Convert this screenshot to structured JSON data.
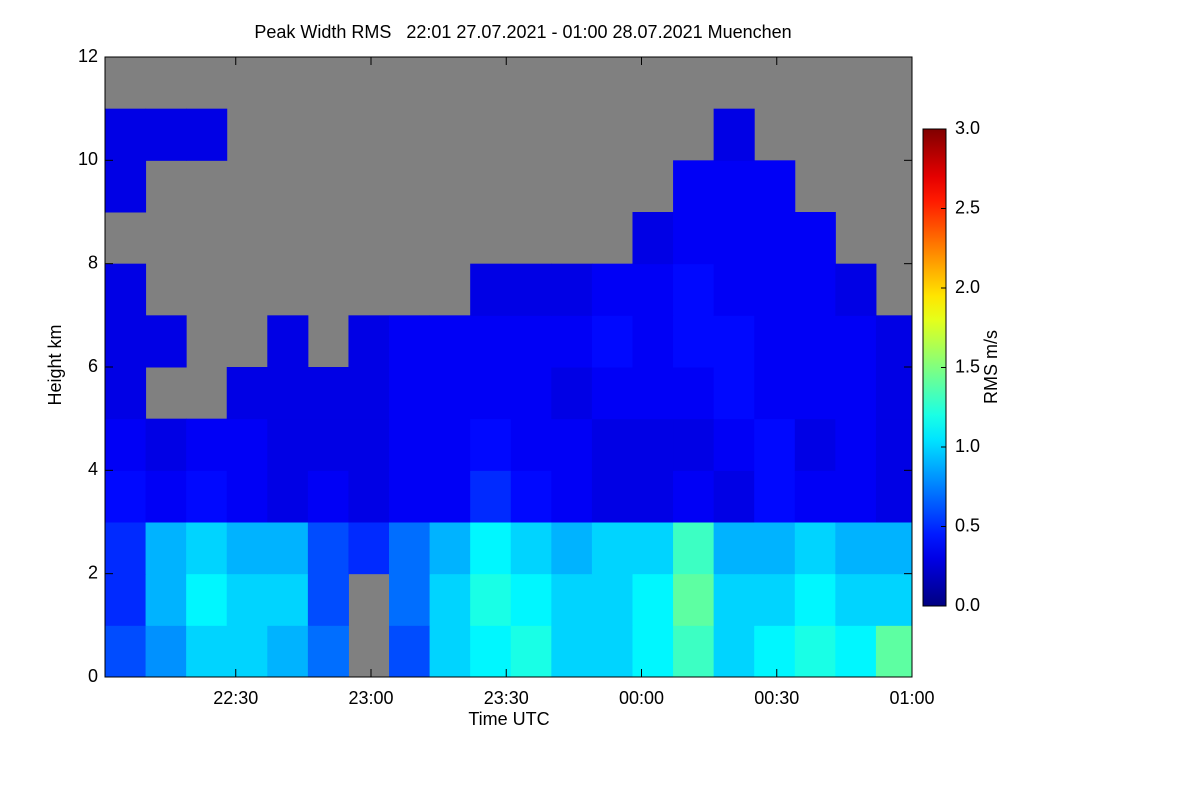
{
  "chart_data": {
    "type": "heatmap",
    "title": "Peak Width RMS   22:01 27.07.2021 - 01:00 28.07.2021 Muenchen",
    "xlabel": "Time UTC",
    "ylabel": "Height km",
    "colorbar_label": "RMS m/s",
    "colormap": "jet",
    "missing_color": "#808080",
    "xlim": [
      1,
      180
    ],
    "xticks": [
      {
        "value": 30,
        "label": "22:30"
      },
      {
        "value": 60,
        "label": "23:00"
      },
      {
        "value": 90,
        "label": "23:30"
      },
      {
        "value": 120,
        "label": "00:00"
      },
      {
        "value": 150,
        "label": "00:30"
      },
      {
        "value": 180,
        "label": "01:00"
      }
    ],
    "ylim": [
      0,
      12
    ],
    "yticks": [
      0,
      2,
      4,
      6,
      8,
      10,
      12
    ],
    "zlim": [
      0,
      3
    ],
    "zticks": [
      {
        "value": 0,
        "label": "0.0"
      },
      {
        "value": 0.5,
        "label": "0.5"
      },
      {
        "value": 1,
        "label": "1.0"
      },
      {
        "value": 1.5,
        "label": "1.5"
      },
      {
        "value": 2,
        "label": "2.0"
      },
      {
        "value": 2.5,
        "label": "2.5"
      },
      {
        "value": 3,
        "label": "3.0"
      }
    ],
    "xedges": [
      1,
      10,
      19,
      28,
      37,
      46,
      55,
      64,
      73,
      82,
      91,
      100,
      109,
      118,
      127,
      136,
      145,
      154,
      163,
      172,
      180
    ],
    "yedges": [
      0,
      1,
      2,
      3,
      4,
      5,
      6,
      7,
      8,
      9,
      10,
      11,
      12
    ],
    "z": [
      [
        0.6,
        0.8,
        1.0,
        1.0,
        0.9,
        0.7,
        null,
        0.6,
        1.0,
        1.1,
        1.2,
        1.0,
        1.0,
        1.1,
        1.3,
        1.0,
        1.1,
        1.2,
        1.1,
        1.4
      ],
      [
        0.5,
        0.9,
        1.1,
        1.0,
        1.0,
        0.6,
        null,
        0.7,
        1.0,
        1.2,
        1.1,
        1.0,
        1.0,
        1.1,
        1.4,
        1.0,
        1.0,
        1.1,
        1.0,
        1.0
      ],
      [
        0.5,
        0.9,
        1.0,
        0.9,
        0.9,
        0.6,
        0.5,
        0.7,
        0.9,
        1.1,
        1.0,
        0.9,
        1.0,
        1.0,
        1.3,
        0.9,
        0.9,
        1.0,
        0.9,
        0.9
      ],
      [
        0.4,
        0.35,
        0.4,
        0.35,
        0.3,
        0.35,
        0.3,
        0.35,
        0.35,
        0.5,
        0.4,
        0.35,
        0.3,
        0.3,
        0.35,
        0.3,
        0.4,
        0.35,
        0.35,
        0.3
      ],
      [
        0.35,
        0.3,
        0.35,
        0.35,
        0.3,
        0.3,
        0.3,
        0.35,
        0.35,
        0.4,
        0.35,
        0.35,
        0.3,
        0.3,
        0.3,
        0.35,
        0.4,
        0.3,
        0.35,
        0.3
      ],
      [
        0.3,
        null,
        null,
        0.3,
        0.3,
        0.3,
        0.3,
        0.35,
        0.35,
        0.35,
        0.35,
        0.3,
        0.35,
        0.35,
        0.35,
        0.4,
        0.35,
        0.35,
        0.35,
        0.3
      ],
      [
        0.3,
        0.3,
        null,
        null,
        0.3,
        null,
        0.3,
        0.35,
        0.35,
        0.35,
        0.35,
        0.35,
        0.4,
        0.35,
        0.4,
        0.4,
        0.35,
        0.35,
        0.35,
        0.3
      ],
      [
        0.3,
        null,
        null,
        null,
        null,
        null,
        null,
        null,
        null,
        0.3,
        0.3,
        0.3,
        0.35,
        0.35,
        0.4,
        0.35,
        0.35,
        0.35,
        0.3,
        null
      ],
      [
        null,
        null,
        null,
        null,
        null,
        null,
        null,
        null,
        null,
        null,
        null,
        null,
        null,
        0.3,
        0.35,
        0.35,
        0.35,
        0.35,
        null,
        null
      ],
      [
        0.3,
        null,
        null,
        null,
        null,
        null,
        null,
        null,
        null,
        null,
        null,
        null,
        null,
        null,
        0.35,
        0.35,
        0.35,
        null,
        null,
        null
      ],
      [
        0.3,
        0.3,
        0.3,
        null,
        null,
        null,
        null,
        null,
        null,
        null,
        null,
        null,
        null,
        null,
        null,
        0.3,
        null,
        null,
        null,
        null
      ],
      [
        null,
        null,
        null,
        null,
        null,
        null,
        null,
        null,
        null,
        null,
        null,
        null,
        null,
        null,
        null,
        null,
        null,
        null,
        null,
        null
      ]
    ]
  }
}
